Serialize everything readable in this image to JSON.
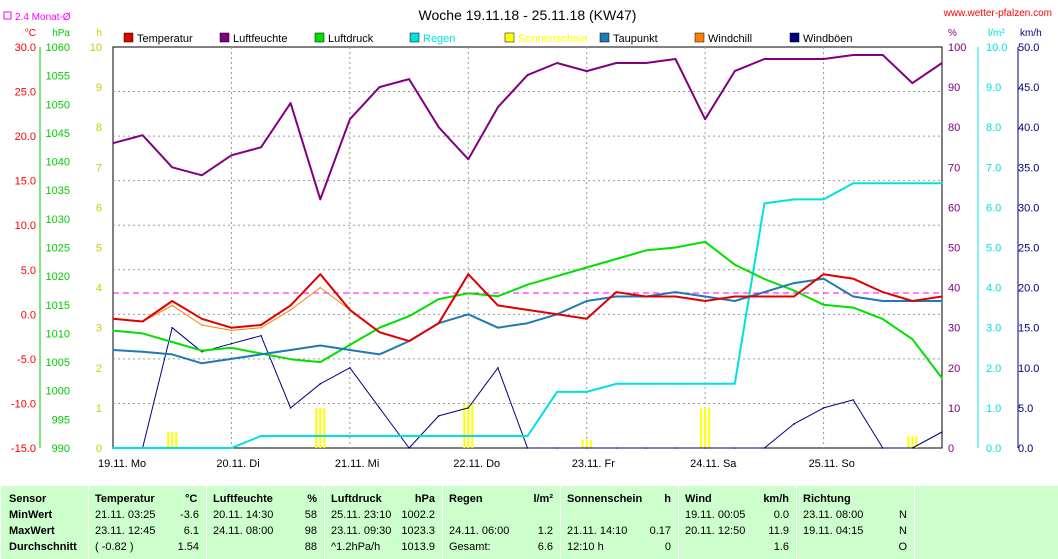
{
  "chart_data": {
    "type": "line",
    "title": "Woche 19.11.18 - 25.11.18 (KW47)",
    "source": "www.wetter-pfalzen.com",
    "monthly_avg_label": "2.4 Monat-Ø",
    "monthly_avg_temp": 2.4,
    "grid": true,
    "legend": [
      {
        "name": "Temperatur",
        "color": "#e00000"
      },
      {
        "name": "Luftfeuchte",
        "color": "#800080"
      },
      {
        "name": "Luftdruck",
        "color": "#00e000"
      },
      {
        "name": "Regen",
        "color": "#00e0e0"
      },
      {
        "name": "Sonnenschein",
        "color": "#ffff00"
      },
      {
        "name": "Taupunkt",
        "color": "#1e7ab4"
      },
      {
        "name": "Windchill",
        "color": "#ff8000"
      },
      {
        "name": "Windböen",
        "color": "#000080"
      }
    ],
    "x_ticks": [
      "19.11. Mo",
      "20.11. Di",
      "21.11. Mi",
      "22.11. Do",
      "23.11. Fr",
      "24.11. Sa",
      "25.11. So"
    ],
    "left_axes": [
      {
        "unit": "°C",
        "color": "#ff0000",
        "range": [
          -15,
          30
        ],
        "ticks": [
          "30.0",
          "25.0",
          "20.0",
          "15.0",
          "10.0",
          "5.0",
          "0.0",
          "-5.0",
          "-10.0",
          "-15.0"
        ]
      },
      {
        "unit": "hPa",
        "color": "#00cc00",
        "range": [
          990,
          1060
        ],
        "ticks": [
          "1060",
          "1055",
          "1050",
          "1045",
          "1040",
          "1035",
          "1030",
          "1025",
          "1020",
          "1015",
          "1010",
          "1005",
          "1000",
          "995",
          "990"
        ]
      },
      {
        "unit": "h",
        "color": "#cccc00",
        "range": [
          0,
          10
        ],
        "ticks": [
          "10",
          "9",
          "8",
          "7",
          "6",
          "5",
          "4",
          "3",
          "2",
          "1",
          "0"
        ]
      }
    ],
    "right_axes": [
      {
        "unit": "%",
        "color": "#800080",
        "range": [
          0,
          100
        ],
        "ticks": [
          "100",
          "90",
          "80",
          "70",
          "60",
          "50",
          "40",
          "30",
          "20",
          "10",
          "0"
        ]
      },
      {
        "unit": "l/m²",
        "color": "#00e0e0",
        "range": [
          0,
          10
        ],
        "ticks": [
          "10.0",
          "9.0",
          "8.0",
          "7.0",
          "6.0",
          "5.0",
          "4.0",
          "3.0",
          "2.0",
          "1.0",
          "0.0"
        ]
      },
      {
        "unit": "km/h",
        "color": "#000080",
        "range": [
          0,
          50
        ],
        "ticks": [
          "50.0",
          "45.0",
          "40.0",
          "35.0",
          "30.0",
          "25.0",
          "20.0",
          "15.0",
          "10.0",
          "5.0",
          "0.0"
        ]
      }
    ],
    "x": [
      0,
      0.25,
      0.5,
      0.75,
      1.0,
      1.25,
      1.5,
      1.75,
      2.0,
      2.25,
      2.5,
      2.75,
      3.0,
      3.25,
      3.5,
      3.75,
      4.0,
      4.25,
      4.5,
      4.75,
      5.0,
      5.25,
      5.5,
      5.75,
      6.0,
      6.25,
      6.5,
      6.75,
      7.0
    ],
    "series": [
      {
        "name": "Temperatur",
        "unit": "°C",
        "values": [
          -0.5,
          -0.8,
          1.5,
          -0.5,
          -1.5,
          -1.2,
          1.0,
          4.5,
          0.5,
          -2.0,
          -3.0,
          -1.0,
          4.5,
          1.0,
          0.5,
          0.0,
          -0.5,
          2.5,
          2.0,
          2.0,
          1.5,
          2.0,
          2.0,
          2.0,
          4.5,
          4.0,
          2.5,
          1.5,
          2.0
        ]
      },
      {
        "name": "Windchill",
        "unit": "°C",
        "values": [
          -0.5,
          -0.8,
          1.0,
          -1.2,
          -1.8,
          -1.5,
          0.5,
          3.0,
          0.5,
          -2.0,
          -3.0,
          -1.0,
          4.5,
          1.0,
          0.5,
          0.0,
          -0.5,
          2.5,
          2.0,
          2.0,
          1.5,
          2.0,
          2.0,
          2.0,
          4.5,
          4.0,
          2.5,
          1.5,
          2.0
        ]
      },
      {
        "name": "Taupunkt",
        "unit": "°C",
        "values": [
          -4.0,
          -4.2,
          -4.5,
          -5.5,
          -5.0,
          -4.5,
          -4.0,
          -3.5,
          -4.0,
          -4.5,
          -3.0,
          -1.0,
          0.0,
          -1.5,
          -1.0,
          0.0,
          1.5,
          2.0,
          2.0,
          2.5,
          2.0,
          1.5,
          2.5,
          3.5,
          4.0,
          2.0,
          1.5,
          1.5,
          1.5
        ]
      },
      {
        "name": "Luftdruck",
        "unit": "hPa",
        "values": [
          1010.5,
          1010.0,
          1008.5,
          1007.0,
          1007.5,
          1006.5,
          1005.5,
          1005.0,
          1008.0,
          1011.0,
          1013.0,
          1016.0,
          1017.0,
          1016.5,
          1018.5,
          1020.0,
          1021.5,
          1023.0,
          1024.5,
          1025.0,
          1026.0,
          1022.0,
          1019.5,
          1017.5,
          1015.0,
          1014.5,
          1012.5,
          1009.0,
          1002.2
        ]
      },
      {
        "name": "Luftfeuchte",
        "unit": "%",
        "values": [
          76,
          78,
          70,
          68,
          73,
          75,
          86,
          62,
          82,
          90,
          92,
          80,
          72,
          85,
          93,
          96,
          94,
          96,
          96,
          97,
          82,
          94,
          97,
          97,
          97,
          98,
          98,
          91,
          96
        ]
      },
      {
        "name": "Regen",
        "unit": "l/m²",
        "values": [
          0,
          0,
          0,
          0,
          0,
          0.3,
          0.3,
          0.3,
          0.3,
          0.3,
          0.3,
          0.3,
          0.3,
          0.3,
          0.3,
          1.4,
          1.4,
          1.6,
          1.6,
          1.6,
          1.6,
          1.6,
          6.1,
          6.2,
          6.2,
          6.6,
          6.6,
          6.6,
          6.6
        ]
      },
      {
        "name": "Windböen",
        "unit": "km/h",
        "values": [
          0,
          0,
          15,
          12,
          13,
          14,
          5,
          8,
          10,
          5,
          0,
          4,
          5,
          10,
          0,
          0,
          0,
          0,
          0,
          0,
          0,
          0,
          0,
          3,
          5,
          6,
          0,
          0,
          2
        ]
      },
      {
        "name": "Sonnenschein",
        "unit": "h",
        "values": [
          0,
          0,
          0.4,
          0,
          0,
          0,
          0,
          1.0,
          0,
          0,
          0,
          0,
          1.1,
          0,
          0,
          0,
          0.2,
          0,
          0,
          0,
          1.0,
          0,
          0,
          0,
          0,
          0,
          0,
          0.3,
          0
        ]
      }
    ]
  },
  "stats": {
    "headers": {
      "sensor": "Sensor",
      "temp": "Temperatur",
      "temp_unit": "°C",
      "hum": "Luftfeuchte",
      "hum_unit": "%",
      "press": "Luftdruck",
      "press_unit": "hPa",
      "rain": "Regen",
      "rain_unit": "l/m²",
      "sun": "Sonnenschein",
      "sun_unit": "h",
      "wind": "Wind",
      "wind_unit": "km/h",
      "dir": "Richtung"
    },
    "rows": [
      {
        "label": "MinWert",
        "temp_time": "21.11.  03:25",
        "temp_val": "-3.6",
        "hum_time": "20.11.  14:30",
        "hum_val": "58",
        "press_time": "25.11.  23:10",
        "press_val": "1002.2",
        "rain_time": "",
        "rain_val": "",
        "sun_time": "",
        "sun_val": "",
        "wind_time": "19.11.  00:05",
        "wind_val": "0.0",
        "dir_time": "23.11.  08:00",
        "dir_val": "N"
      },
      {
        "label": "MaxWert",
        "temp_time": "23.11.  12:45",
        "temp_val": "6.1",
        "hum_time": "24.11.  08:00",
        "hum_val": "98",
        "press_time": "23.11.  09:30",
        "press_val": "1023.3",
        "rain_time": "24.11.  06:00",
        "rain_val": "1.2",
        "sun_time": "21.11.  14:10",
        "sun_val": "0.17",
        "wind_time": "20.11.  12:50",
        "wind_val": "11.9",
        "dir_time": "19.11.  04:15",
        "dir_val": "N"
      },
      {
        "label": "Durchschnitt",
        "temp_time": "( -0.82 )",
        "temp_val": "1.54",
        "hum_time": "",
        "hum_val": "88",
        "press_time": "^1.2hPa/h",
        "press_val": "1013.9",
        "rain_time": "Gesamt:",
        "rain_val": "6.6",
        "sun_time": "12:10 h",
        "sun_val": "0",
        "wind_time": "",
        "wind_val": "1.6",
        "dir_time": "",
        "dir_val": "O"
      }
    ]
  }
}
